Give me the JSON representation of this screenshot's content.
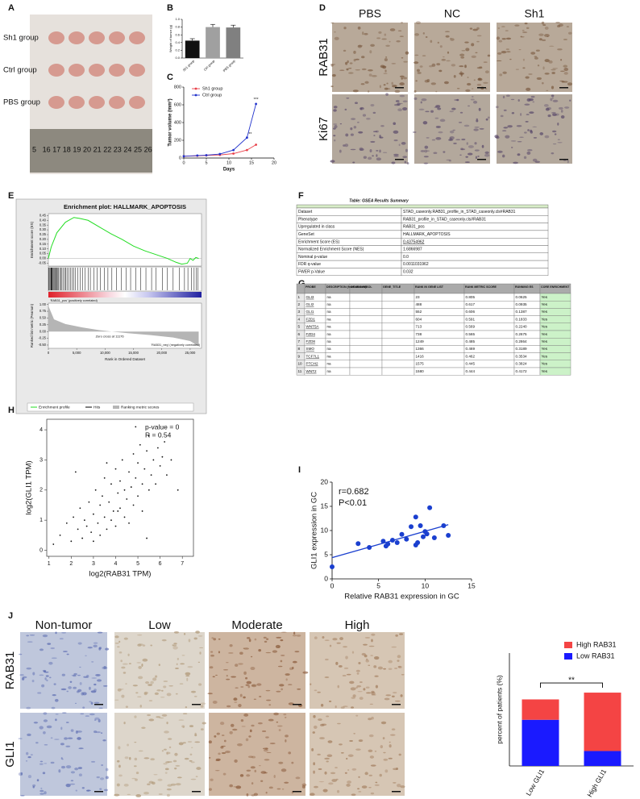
{
  "panel_labels": [
    "A",
    "B",
    "C",
    "D",
    "E",
    "F",
    "G",
    "H",
    "I",
    "J"
  ],
  "panel_a": {
    "rows": [
      "Sh1 group",
      "Ctrl group",
      "PBS group"
    ],
    "ruler": [
      "5",
      "16",
      "17",
      "18",
      "19",
      "20",
      "21",
      "22",
      "23",
      "24",
      "25",
      "26"
    ]
  },
  "panel_d": {
    "columns": [
      "PBS",
      "NC",
      "Sh1"
    ],
    "rows": [
      "RAB31",
      "Ki67"
    ]
  },
  "panel_f": {
    "title": "Table: GSEA Results Summary",
    "rows": [
      [
        "Dataset",
        "STAD_caseonly.RAB31_profile_in_STAD_caseonly.cls#RAB31"
      ],
      [
        "Phenotype",
        "RAB31_profile_in_STAD_caseonly.cls#RAB31"
      ],
      [
        "Upregulated in class",
        "RAB31_pos"
      ],
      [
        "GeneSet",
        "HALLMARK_APOPTOSIS"
      ],
      [
        "Enrichment Score (ES)",
        "0.43754962"
      ],
      [
        "Normalized Enrichment Score (NES)",
        "1.6866987"
      ],
      [
        "Nominal p-value",
        "0.0"
      ],
      [
        "FDR q-value",
        "0.0011031962"
      ],
      [
        "FWER p-Value",
        "0.032"
      ]
    ]
  },
  "panel_g": {
    "header": [
      "PROBE",
      "DESCRIPTION (from dataset)",
      "GENE SYMBOL",
      "GENE_TITLE",
      "RANK IN GENE LIST",
      "RANK METRIC SCORE",
      "RUNNING ES",
      "CORE ENRICHMENT"
    ],
    "rows": [
      [
        "1",
        "GLI3",
        "na",
        "23",
        "0.805",
        "0.0625",
        "Yes"
      ],
      [
        "2",
        "GLI2",
        "na",
        "488",
        "0.617",
        "0.0935",
        "Yes"
      ],
      [
        "3",
        "GLI1",
        "na",
        "552",
        "0.606",
        "0.1387",
        "Yes"
      ],
      [
        "4",
        "FZD1",
        "na",
        "604",
        "0.591",
        "0.1833",
        "Yes"
      ],
      [
        "5",
        "WNT5A",
        "na",
        "713",
        "0.569",
        "0.2240",
        "Yes"
      ],
      [
        "6",
        "FZD4",
        "na",
        "738",
        "0.565",
        "0.2675",
        "Yes"
      ],
      [
        "7",
        "FZD8",
        "na",
        "1249",
        "0.485",
        "0.2864",
        "Yes"
      ],
      [
        "8",
        "SMO",
        "na",
        "1366",
        "0.469",
        "0.3189",
        "Yes"
      ],
      [
        "9",
        "TCF7L1",
        "na",
        "1416",
        "0.462",
        "0.3534",
        "Yes"
      ],
      [
        "10",
        "PTCH2",
        "na",
        "1575",
        "0.445",
        "0.3824",
        "Yes"
      ],
      [
        "11",
        "WNT2",
        "na",
        "1580",
        "0.444",
        "0.4172",
        "Yes"
      ]
    ]
  },
  "panel_j": {
    "columns": [
      "Non-tumor",
      "Low",
      "Moderate",
      "High"
    ],
    "rows": [
      "RAB31",
      "GLI1"
    ]
  },
  "chart_data": [
    {
      "type": "bar",
      "y_label": "Weight of tumor (g)",
      "categories": [
        "Sh1 group",
        "Ctrl group",
        "PBS group"
      ],
      "values": [
        0.45,
        0.8,
        0.79
      ],
      "errors": [
        0.05,
        0.07,
        0.06
      ],
      "colors": [
        "#111111",
        "#a0a0a0",
        "#808080"
      ],
      "ylim": [
        0,
        1
      ],
      "yticks": [
        {
          "value": 0,
          "label": "0.0"
        },
        0.2,
        0.4,
        0.6,
        0.8,
        {
          "value": 1,
          "label": "1.0"
        }
      ]
    },
    {
      "type": "line",
      "x_label": "Days",
      "y_label": "Tumor volume (mm³)",
      "x": [
        0,
        3,
        5,
        8,
        11,
        14,
        16
      ],
      "series": [
        {
          "name": "Sh1 group",
          "color": "#e8414a",
          "values": [
            20,
            25,
            30,
            35,
            50,
            90,
            150
          ]
        },
        {
          "name": "Ctrl group",
          "color": "#2233cc",
          "values": [
            20,
            28,
            32,
            45,
            90,
            230,
            610
          ]
        }
      ],
      "xlim": [
        0,
        20
      ],
      "xticks": [
        0,
        5,
        10,
        15,
        20
      ],
      "ylim": [
        0,
        800
      ],
      "yticks": [
        0,
        200,
        400,
        600,
        800
      ],
      "annotations": [
        "**",
        "***"
      ]
    },
    {
      "type": "gsea",
      "title": "Enrichment plot: HALLMARK_APOPTOSIS",
      "y_label": "Enrichment score (ES)",
      "y2_label": "Ranked list metric (Pearson)",
      "x_label": "Rank in Ordered Dataset",
      "x": [
        0,
        500,
        1500,
        3000,
        4500,
        5500,
        7000,
        9000,
        11000,
        13000,
        15000,
        17000,
        19000,
        21000,
        22500,
        23500,
        24500,
        25000,
        25500,
        26000,
        26500
      ],
      "values": [
        0,
        0.12,
        0.27,
        0.38,
        0.43,
        0.42,
        0.4,
        0.33,
        0.26,
        0.2,
        0.13,
        0.08,
        0.04,
        0,
        -0.04,
        -0.06,
        -0.05,
        0,
        -0.02,
        0.01,
        0
      ],
      "color": "#22dd22",
      "hits": [
        30,
        150,
        300,
        450,
        488,
        552,
        604,
        713,
        738,
        900,
        1050,
        1249,
        1366,
        1416,
        1575,
        1580,
        1800,
        2000,
        2200,
        2400,
        2600,
        2900,
        3100,
        3300,
        3600,
        3900,
        4200,
        4500,
        4800,
        5200,
        5600,
        6000,
        6500,
        7000,
        7400,
        8000,
        8600,
        9200,
        9900,
        10500,
        11200,
        12000,
        12900,
        13700,
        14500,
        15400,
        16300,
        17200,
        18200,
        19000,
        20100,
        21000,
        22000,
        23100,
        24000,
        24600,
        25200,
        25700,
        26100,
        26400
      ],
      "metric_x": [
        0,
        1000,
        3000,
        6000,
        9000,
        11176,
        14000,
        18000,
        22000,
        25000,
        26500
      ],
      "metric_values": [
        0.95,
        0.45,
        0.28,
        0.15,
        0.05,
        0,
        -0.06,
        -0.13,
        -0.22,
        -0.35,
        -0.55
      ],
      "xlim": [
        0,
        27000
      ],
      "xticks": [
        0,
        {
          "value": 5000,
          "label": "5,000"
        },
        {
          "value": 10000,
          "label": "10,000"
        },
        {
          "value": 15000,
          "label": "15,000"
        },
        {
          "value": 20000,
          "label": "20,000"
        },
        {
          "value": 25000,
          "label": "25,000"
        }
      ],
      "ylim": [
        -0.08,
        0.47
      ],
      "yticks": [
        0.45,
        {
          "value": 0.4,
          "label": "0.40"
        },
        0.35,
        {
          "value": 0.3,
          "label": "0.30"
        },
        0.25,
        {
          "value": 0.2,
          "label": "0.20"
        },
        0.15,
        {
          "value": 0.1,
          "label": "0.10"
        },
        0.05,
        {
          "value": 0,
          "label": "0.00"
        },
        -0.05
      ],
      "y2lim": [
        -0.62,
        1.05
      ],
      "y2ticks": [
        {
          "value": 1,
          "label": "1.00"
        },
        0.75,
        {
          "value": 0.5,
          "label": "0.50"
        },
        0.25,
        {
          "value": 0,
          "label": "0.00"
        },
        -0.25,
        {
          "value": -0.5,
          "label": "-0.50"
        }
      ],
      "annotations": [
        "'RAB31_pos' (positively correlated)",
        "Zero cross at 11176",
        "'RAB31_neg' (negatively correlated)"
      ],
      "legend": [
        "Enrichment profile",
        "Hits",
        "Ranking metric scores"
      ]
    },
    {
      "type": "scatter",
      "x_label": "log2(RAB31 TPM)",
      "y_label": "log2(GLI1 TPM)",
      "annotations": [
        "p-value = 0",
        "R = 0.54"
      ],
      "color": "#111111",
      "x": [
        1.2,
        1.5,
        1.8,
        2.0,
        2.1,
        2.3,
        2.4,
        2.5,
        2.6,
        2.7,
        2.8,
        2.9,
        3.0,
        3.0,
        3.1,
        3.2,
        3.3,
        3.3,
        3.4,
        3.5,
        3.5,
        3.6,
        3.7,
        3.8,
        3.8,
        3.9,
        4.0,
        4.0,
        4.1,
        4.2,
        4.2,
        4.3,
        4.4,
        4.4,
        4.5,
        4.6,
        4.6,
        4.7,
        4.8,
        4.8,
        4.9,
        5.0,
        5.0,
        5.1,
        5.2,
        5.2,
        5.3,
        5.4,
        5.5,
        5.5,
        5.6,
        5.7,
        5.8,
        5.9,
        6.0,
        6.1,
        6.2,
        6.3,
        6.5,
        6.8,
        3.6,
        4.9,
        2.2,
        5.4,
        4.1
      ],
      "y": [
        0.2,
        0.5,
        0.9,
        0.3,
        1.1,
        0.7,
        1.4,
        0.4,
        1.0,
        0.8,
        1.6,
        0.6,
        1.2,
        0.3,
        2.0,
        0.9,
        1.5,
        0.5,
        1.8,
        1.1,
        2.4,
        0.7,
        1.6,
        2.2,
        1.0,
        1.3,
        2.7,
        0.8,
        1.9,
        1.4,
        2.3,
        3.0,
        1.1,
        2.0,
        1.7,
        2.6,
        0.9,
        2.1,
        3.2,
        1.5,
        2.4,
        2.9,
        1.8,
        3.5,
        2.2,
        1.3,
        2.7,
        3.3,
        2.0,
        3.8,
        2.5,
        3.0,
        2.2,
        3.4,
        2.8,
        3.1,
        3.6,
        2.5,
        3.0,
        2.0,
        2.9,
        4.1,
        2.6,
        0.4,
        1.3
      ],
      "xlim": [
        0.9,
        7.5
      ],
      "xticks": [
        1,
        2,
        3,
        4,
        5,
        6,
        7
      ],
      "ylim": [
        -0.2,
        4.35
      ],
      "yticks": [
        0,
        1,
        2,
        3,
        4
      ]
    },
    {
      "type": "scatter",
      "x_label": "Relative RAB31 expression in GC",
      "y_label": "GLI1 expression in GC",
      "annotations": [
        "r=0.682",
        "P<0.01"
      ],
      "color": "#1a3fcf",
      "x": [
        0,
        2.8,
        4,
        5.5,
        5.8,
        6,
        6.5,
        7,
        7.5,
        8,
        8.5,
        9,
        9,
        9.2,
        9.5,
        9.8,
        10,
        10.2,
        10.5,
        11,
        12,
        12.5
      ],
      "y": [
        2.5,
        7.3,
        6.5,
        7.8,
        6.8,
        7.2,
        8,
        7.5,
        9.2,
        8.2,
        10.8,
        12.8,
        7,
        7.5,
        11,
        8.7,
        9.8,
        9.3,
        14.7,
        8.5,
        11,
        9
      ],
      "fit": {
        "x": [
          0,
          12.5
        ],
        "y": [
          4.4,
          11.2
        ]
      },
      "xlim": [
        0,
        15
      ],
      "xticks": [
        0,
        5,
        10,
        15
      ],
      "ylim": [
        0,
        20
      ],
      "yticks": [
        0,
        5,
        10,
        15,
        20
      ]
    },
    {
      "type": "stacked_bar",
      "y_label": "percent of patients (%)",
      "categories": [
        "Low GLI1",
        "High GLI1"
      ],
      "series": [
        {
          "name": "Low RAB31",
          "color": "#1a1aff",
          "values": [
            34,
            11
          ]
        },
        {
          "name": "High RAB31",
          "color": "#f44444",
          "values": [
            15,
            43
          ]
        }
      ],
      "ylim": [
        0,
        95
      ],
      "annotations": [
        "**"
      ]
    }
  ]
}
